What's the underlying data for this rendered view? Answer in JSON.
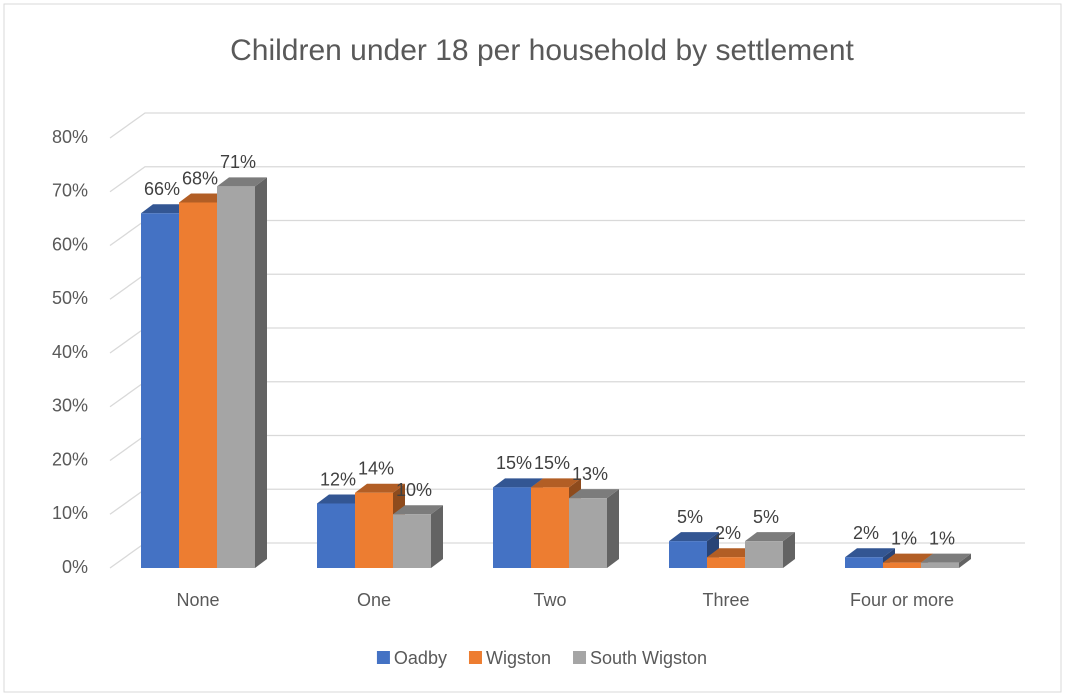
{
  "chart_data": {
    "type": "bar3d",
    "title": "Children under 18 per household by settlement",
    "categories": [
      "None",
      "One",
      "Two",
      "Three",
      "Four or more"
    ],
    "series": [
      {
        "name": "Oadby",
        "color": "#4472c4",
        "values": [
          66,
          12,
          15,
          5,
          2
        ],
        "value_labels": [
          "66%",
          "12%",
          "15%",
          "5%",
          "2%"
        ]
      },
      {
        "name": "Wigston",
        "color": "#ed7d31",
        "values": [
          68,
          14,
          15,
          2,
          1
        ],
        "value_labels": [
          "68%",
          "14%",
          "15%",
          "2%",
          "1%"
        ]
      },
      {
        "name": "South Wigston",
        "color": "#a5a5a5",
        "values": [
          71,
          10,
          13,
          5,
          1
        ],
        "value_labels": [
          "71%",
          "10%",
          "13%",
          "5%",
          "1%"
        ]
      }
    ],
    "ylim": [
      0,
      80
    ],
    "yticks": [
      {
        "value": 0,
        "label": "0%"
      },
      {
        "value": 10,
        "label": "10%"
      },
      {
        "value": 20,
        "label": "20%"
      },
      {
        "value": 30,
        "label": "30%"
      },
      {
        "value": 40,
        "label": "40%"
      },
      {
        "value": 50,
        "label": "50%"
      },
      {
        "value": 60,
        "label": "60%"
      },
      {
        "value": 70,
        "label": "70%"
      },
      {
        "value": 80,
        "label": "80%"
      }
    ],
    "grid": true,
    "legend": "bottom"
  }
}
